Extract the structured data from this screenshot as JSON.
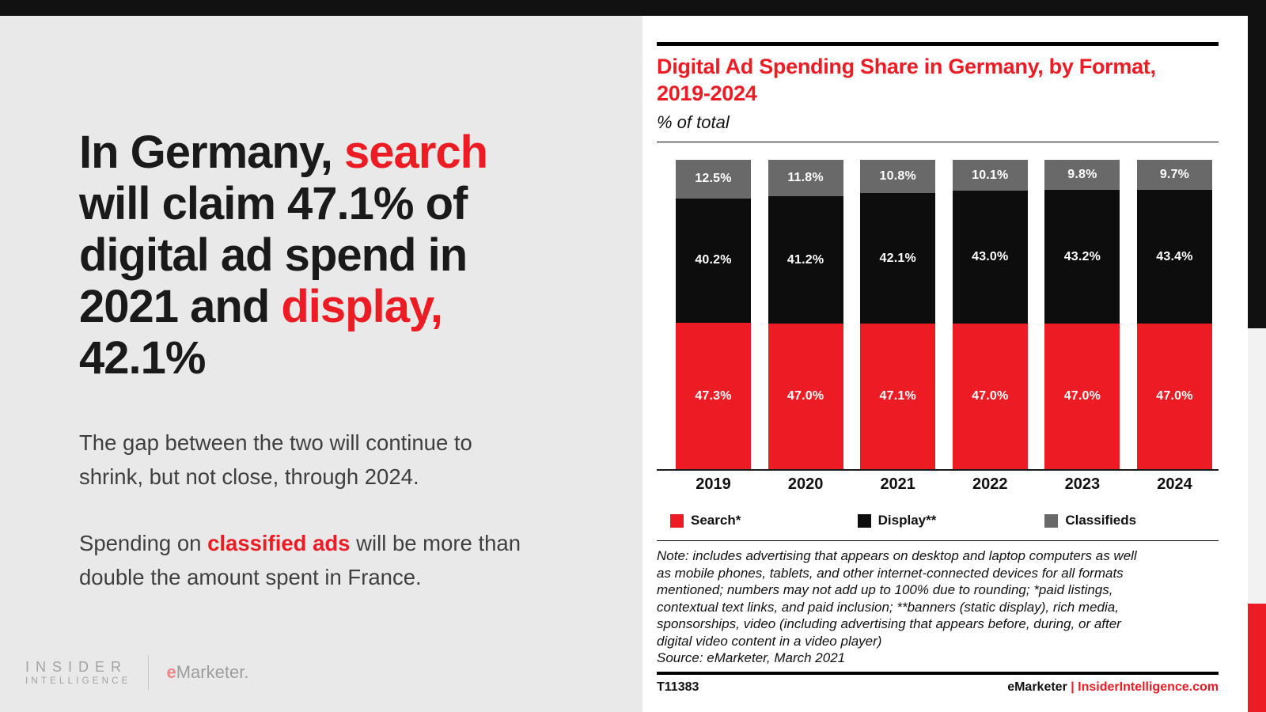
{
  "colors": {
    "accent_red": "#ed1c24",
    "bar_black": "#0d0d0d",
    "bar_gray": "#696969",
    "left_panel_bg": "#e9e9e9"
  },
  "left_panel": {
    "headline_lines": [
      [
        {
          "t": "In Germany, ",
          "s": "dark"
        },
        {
          "t": "search",
          "s": "red"
        }
      ],
      [
        {
          "t": "will claim 47.1% of",
          "s": "dark"
        }
      ],
      [
        {
          "t": "digital ad spend in",
          "s": "dark"
        }
      ],
      [
        {
          "t": "2021 and ",
          "s": "dark"
        },
        {
          "t": "display,",
          "s": "red"
        }
      ],
      [
        {
          "t": "42.1%",
          "s": "dark"
        }
      ]
    ],
    "para1_lines": [
      "The gap between the two will continue to",
      "shrink, but not close, through 2024."
    ],
    "para2_lines": [
      [
        {
          "t": "Spending on ",
          "s": "body"
        },
        {
          "t": "classified ads",
          "s": "redbold"
        },
        {
          "t": " will be more than",
          "s": "body"
        }
      ],
      [
        {
          "t": "double the amount spent in France.",
          "s": "body"
        }
      ]
    ],
    "logo": {
      "insider_line1": "INSIDER",
      "insider_line2": "INTELLIGENCE",
      "emarketer_e": "e",
      "emarketer_rest": "Marketer."
    }
  },
  "chart": {
    "title_line1": "Digital Ad Spending Share in Germany, by Format,",
    "title_line2": "2019-2024",
    "subtitle": "% of total",
    "note_lines": [
      "Note: includes advertising that appears on desktop and laptop computers as well",
      "as mobile phones, tablets, and other internet-connected devices for all formats",
      "mentioned; numbers may not add up to 100% due to rounding; *paid listings,",
      "contextual text links, and paid inclusion; **banners (static display), rich media,",
      "sponsorships, video (including advertising that appears before, during, or after",
      "digital video content in a video player)"
    ],
    "source": "Source: eMarketer, March 2021"
  },
  "chart_data": {
    "type": "bar",
    "stacked": true,
    "categories": [
      "2019",
      "2020",
      "2021",
      "2022",
      "2023",
      "2024"
    ],
    "series": [
      {
        "name": "Search*",
        "color": "#ed1c24",
        "values": [
          47.3,
          47.0,
          47.1,
          47.0,
          47.0,
          47.0
        ]
      },
      {
        "name": "Display**",
        "color": "#0d0d0d",
        "values": [
          40.2,
          41.2,
          42.1,
          43.0,
          43.2,
          43.4
        ]
      },
      {
        "name": "Classifieds",
        "color": "#696969",
        "values": [
          12.5,
          11.8,
          10.8,
          10.1,
          9.8,
          9.7
        ]
      }
    ],
    "value_suffix": "%",
    "value_decimals": 1,
    "ylim": [
      0,
      100
    ],
    "grid": false,
    "legend_position": "bottom",
    "data_labels": "inside-white-bold"
  },
  "footer": {
    "id": "T11383",
    "brand_segments": [
      {
        "t": "eMarketer",
        "s": "dark"
      },
      {
        "t": " | ",
        "s": "red"
      },
      {
        "t": "InsiderIntelligence.com",
        "s": "red"
      }
    ]
  }
}
